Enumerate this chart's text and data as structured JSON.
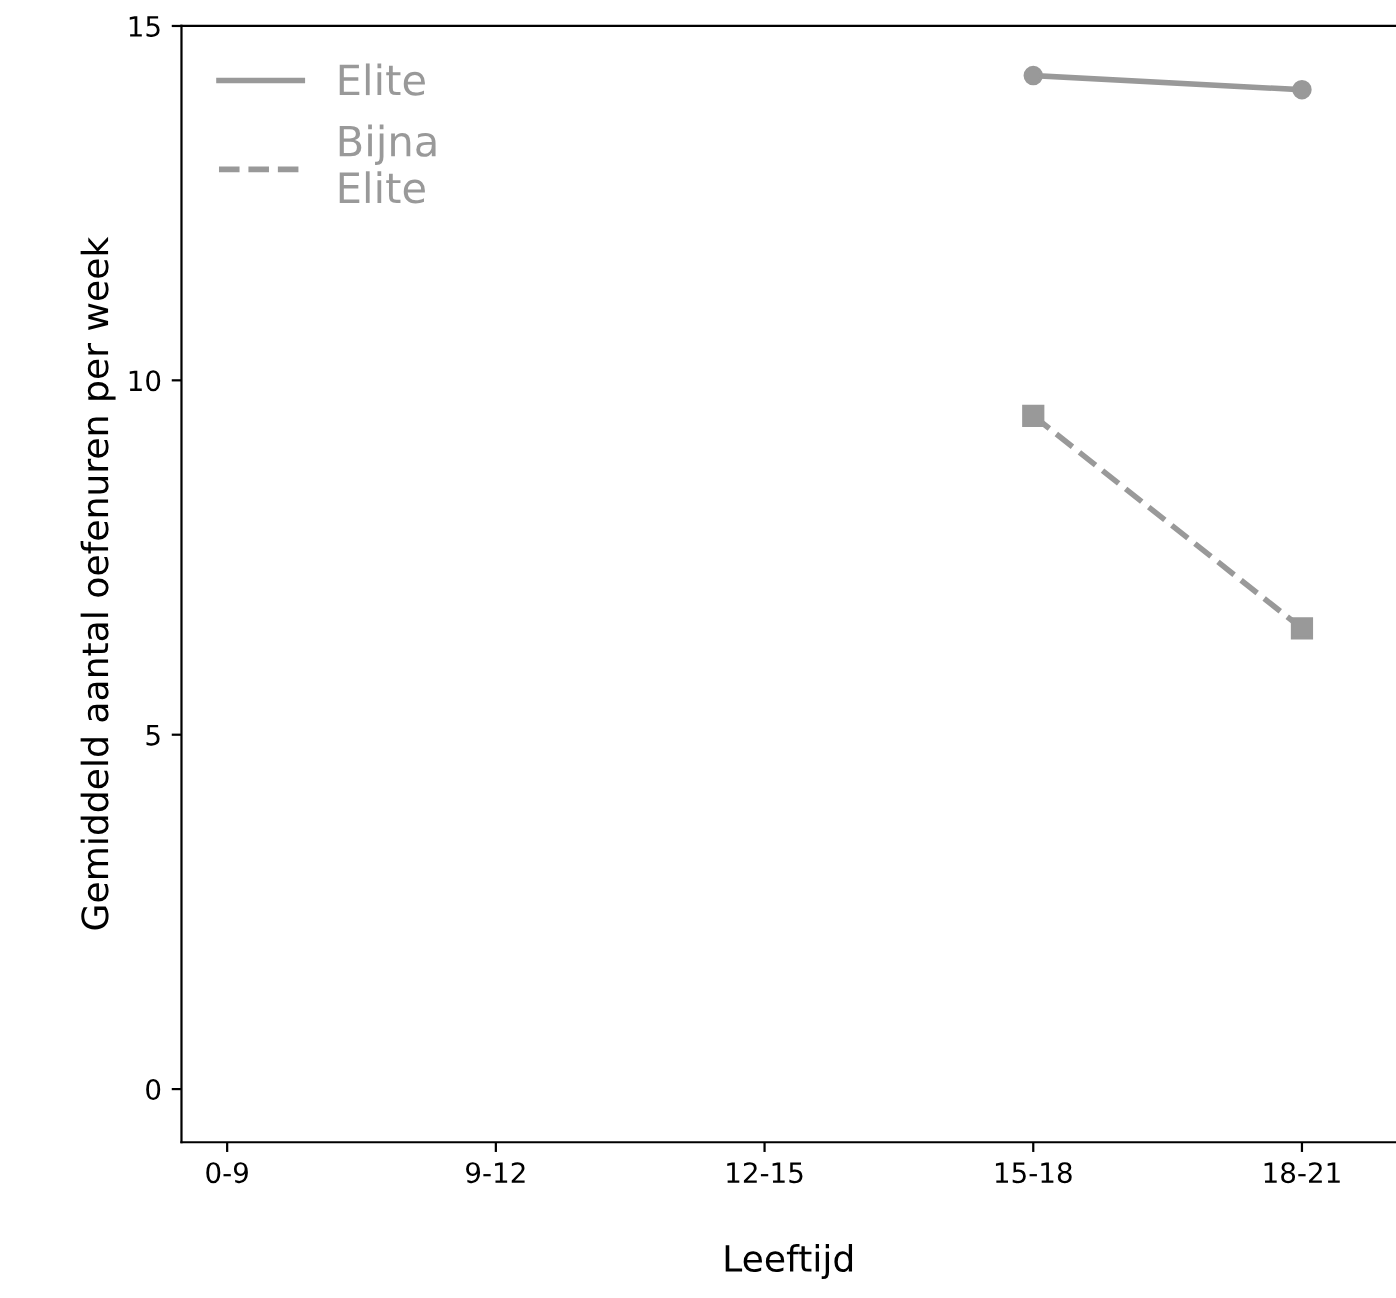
{
  "chart_data": {
    "type": "line",
    "xlabel": "Leeftijd",
    "ylabel": "Gemiddeld aantal oefenuren per week",
    "categories": [
      "0-9",
      "9-12",
      "12-15",
      "15-18",
      "18-21"
    ],
    "series": [
      {
        "name": "Elite",
        "color": "#999999",
        "values": [
          null,
          null,
          null,
          14.3,
          14.1
        ],
        "marker": "circle",
        "line_style": "solid"
      },
      {
        "name": "Bijna\nElite",
        "color": "#999999",
        "values": [
          null,
          null,
          null,
          9.5,
          6.5
        ],
        "marker": "square",
        "line_style": "dashed"
      }
    ],
    "ylim": [
      -0.75,
      15
    ],
    "yticks": [
      0,
      5,
      10,
      15
    ],
    "grid": false,
    "legend": "top left"
  }
}
